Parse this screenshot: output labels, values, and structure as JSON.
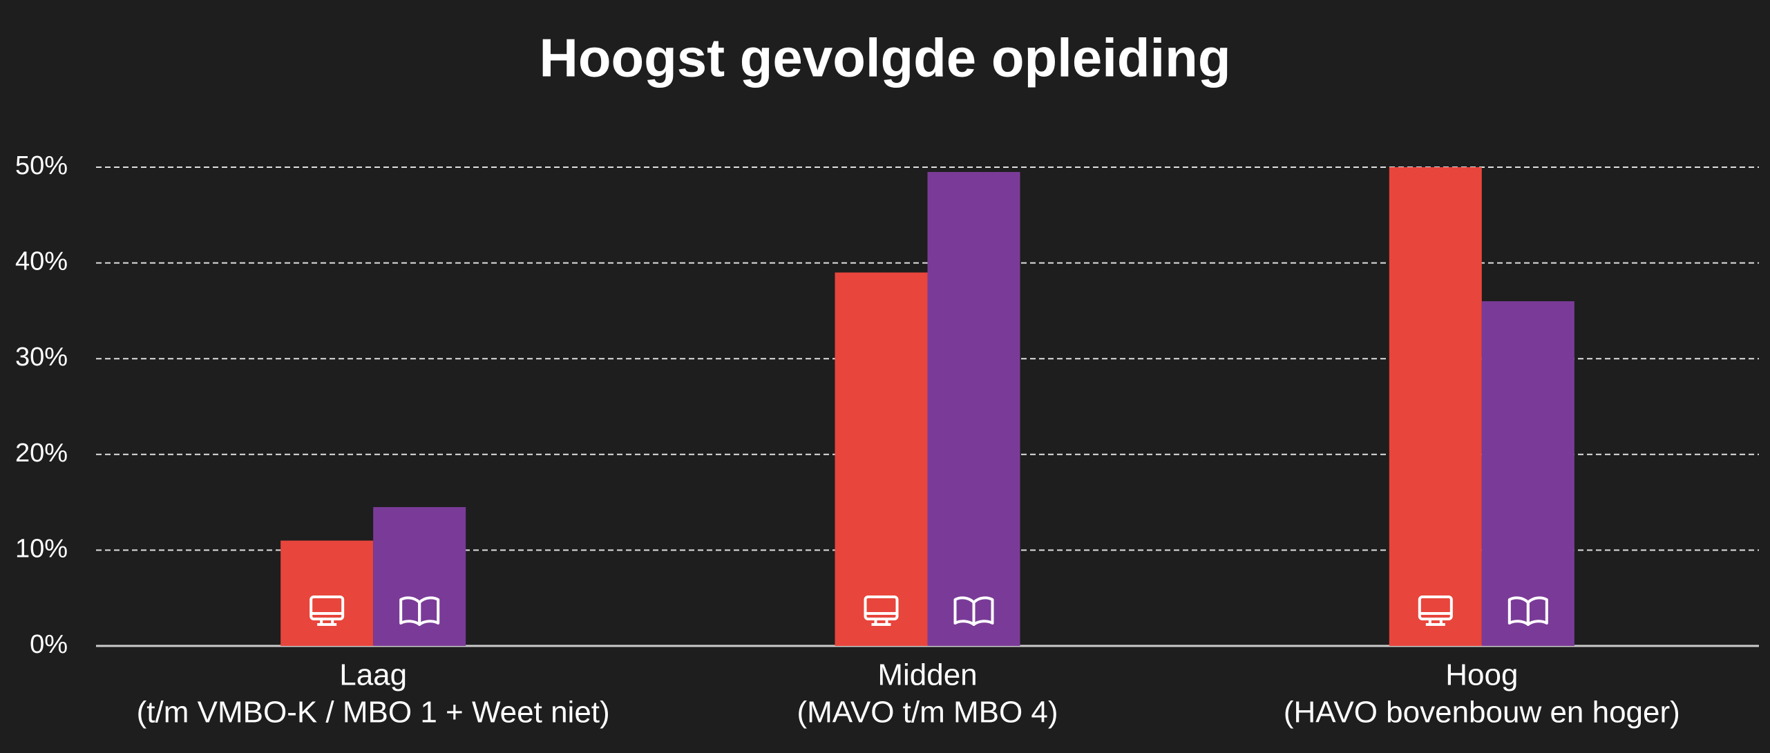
{
  "chart_data": {
    "type": "bar",
    "title": "Hoogst gevolgde opleiding",
    "categories": [
      [
        "Laag",
        "(t/m VMBO-K / MBO 1 + Weet niet)"
      ],
      [
        "Midden",
        "(MAVO t/m MBO 4)"
      ],
      [
        "Hoog",
        "(HAVO bovenbouw en hoger)"
      ]
    ],
    "series": [
      {
        "color": "#e8453c",
        "values": [
          11,
          39,
          50
        ]
      },
      {
        "color": "#7a3b98",
        "values": [
          14.5,
          49.5,
          36
        ]
      }
    ],
    "ylim": [
      0,
      50
    ],
    "yticks": [
      {
        "value": 0,
        "label": "0%"
      },
      {
        "value": 10,
        "label": "10%"
      },
      {
        "value": 20,
        "label": "20%"
      },
      {
        "value": 30,
        "label": "30%"
      },
      {
        "value": 40,
        "label": "40%"
      },
      {
        "value": 50,
        "label": "50%"
      }
    ],
    "grid": true
  }
}
